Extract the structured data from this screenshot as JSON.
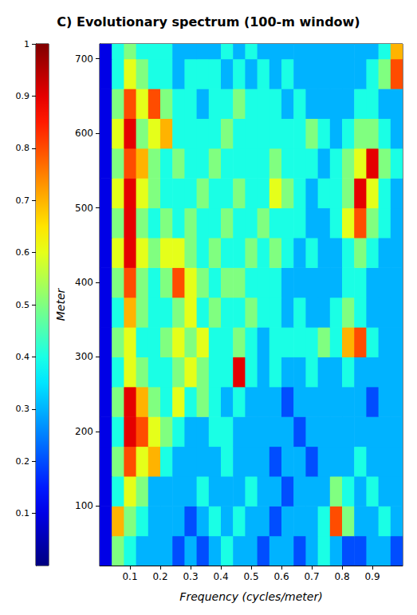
{
  "chart_data": {
    "type": "heatmap",
    "title": "C) Evolutionary spectrum (100-m window)",
    "x_label": "Frequency (cycles/meter)",
    "y_label": "Meter",
    "x": [
      0.02,
      0.06,
      0.1,
      0.14,
      0.18,
      0.22,
      0.26,
      0.3,
      0.34,
      0.38,
      0.42,
      0.46,
      0.5,
      0.54,
      0.58,
      0.62,
      0.66,
      0.7,
      0.74,
      0.78,
      0.82,
      0.86,
      0.9,
      0.94,
      0.98
    ],
    "y": [
      40,
      80,
      120,
      160,
      200,
      240,
      280,
      320,
      360,
      400,
      440,
      480,
      520,
      560,
      600,
      640,
      680,
      720
    ],
    "values": [
      [
        0.1,
        0.5,
        0.4,
        0.3,
        0.3,
        0.3,
        0.2,
        0.3,
        0.2,
        0.3,
        0.4,
        0.3,
        0.3,
        0.2,
        0.3,
        0.3,
        0.2,
        0.3,
        0.4,
        0.3,
        0.2,
        0.2,
        0.3,
        0.3,
        0.2
      ],
      [
        0.1,
        0.7,
        0.5,
        0.4,
        0.3,
        0.3,
        0.3,
        0.2,
        0.3,
        0.4,
        0.3,
        0.4,
        0.3,
        0.3,
        0.2,
        0.3,
        0.3,
        0.3,
        0.4,
        0.8,
        0.5,
        0.3,
        0.3,
        0.4,
        0.3
      ],
      [
        0.1,
        0.4,
        0.6,
        0.5,
        0.3,
        0.3,
        0.3,
        0.3,
        0.4,
        0.3,
        0.3,
        0.3,
        0.4,
        0.3,
        0.3,
        0.2,
        0.3,
        0.3,
        0.3,
        0.5,
        0.4,
        0.3,
        0.4,
        0.3,
        0.3
      ],
      [
        0.1,
        0.5,
        0.8,
        0.6,
        0.7,
        0.4,
        0.3,
        0.3,
        0.3,
        0.3,
        0.4,
        0.3,
        0.3,
        0.3,
        0.2,
        0.3,
        0.3,
        0.2,
        0.3,
        0.3,
        0.3,
        0.4,
        0.3,
        0.3,
        0.3
      ],
      [
        0.1,
        0.4,
        0.9,
        0.8,
        0.6,
        0.5,
        0.4,
        0.3,
        0.3,
        0.4,
        0.4,
        0.3,
        0.3,
        0.3,
        0.3,
        0.3,
        0.2,
        0.3,
        0.3,
        0.3,
        0.3,
        0.3,
        0.3,
        0.3,
        0.3
      ],
      [
        0.1,
        0.5,
        0.9,
        0.7,
        0.5,
        0.4,
        0.6,
        0.4,
        0.5,
        0.4,
        0.3,
        0.4,
        0.3,
        0.3,
        0.3,
        0.2,
        0.3,
        0.3,
        0.3,
        0.3,
        0.3,
        0.3,
        0.2,
        0.3,
        0.3
      ],
      [
        0.1,
        0.4,
        0.6,
        0.5,
        0.4,
        0.4,
        0.5,
        0.6,
        0.5,
        0.4,
        0.4,
        0.9,
        0.4,
        0.3,
        0.4,
        0.3,
        0.3,
        0.4,
        0.3,
        0.3,
        0.4,
        0.3,
        0.3,
        0.3,
        0.3
      ],
      [
        0.1,
        0.5,
        0.6,
        0.4,
        0.4,
        0.5,
        0.6,
        0.5,
        0.6,
        0.4,
        0.4,
        0.5,
        0.4,
        0.3,
        0.4,
        0.4,
        0.4,
        0.4,
        0.5,
        0.4,
        0.7,
        0.8,
        0.4,
        0.3,
        0.3
      ],
      [
        0.1,
        0.4,
        0.7,
        0.5,
        0.4,
        0.4,
        0.5,
        0.6,
        0.4,
        0.5,
        0.4,
        0.4,
        0.5,
        0.4,
        0.4,
        0.3,
        0.4,
        0.3,
        0.3,
        0.4,
        0.5,
        0.4,
        0.3,
        0.3,
        0.3
      ],
      [
        0.1,
        0.5,
        0.8,
        0.5,
        0.4,
        0.5,
        0.8,
        0.6,
        0.5,
        0.4,
        0.5,
        0.5,
        0.4,
        0.4,
        0.4,
        0.3,
        0.3,
        0.3,
        0.3,
        0.3,
        0.4,
        0.4,
        0.3,
        0.3,
        0.3
      ],
      [
        0.1,
        0.6,
        0.9,
        0.6,
        0.5,
        0.6,
        0.6,
        0.5,
        0.4,
        0.5,
        0.4,
        0.4,
        0.5,
        0.4,
        0.5,
        0.4,
        0.3,
        0.4,
        0.3,
        0.3,
        0.4,
        0.5,
        0.4,
        0.3,
        0.3
      ],
      [
        0.1,
        0.5,
        0.9,
        0.5,
        0.4,
        0.5,
        0.4,
        0.5,
        0.4,
        0.4,
        0.5,
        0.4,
        0.4,
        0.5,
        0.4,
        0.4,
        0.4,
        0.3,
        0.3,
        0.4,
        0.6,
        0.8,
        0.5,
        0.4,
        0.3
      ],
      [
        0.1,
        0.6,
        0.9,
        0.6,
        0.5,
        0.4,
        0.4,
        0.4,
        0.5,
        0.4,
        0.4,
        0.5,
        0.4,
        0.4,
        0.6,
        0.5,
        0.4,
        0.3,
        0.4,
        0.4,
        0.5,
        0.9,
        0.6,
        0.4,
        0.3
      ],
      [
        0.1,
        0.5,
        0.8,
        0.7,
        0.5,
        0.4,
        0.5,
        0.4,
        0.4,
        0.5,
        0.4,
        0.4,
        0.4,
        0.4,
        0.5,
        0.4,
        0.4,
        0.4,
        0.3,
        0.4,
        0.5,
        0.6,
        0.9,
        0.5,
        0.4
      ],
      [
        0.1,
        0.6,
        0.9,
        0.5,
        0.6,
        0.7,
        0.4,
        0.4,
        0.4,
        0.4,
        0.5,
        0.4,
        0.4,
        0.4,
        0.4,
        0.4,
        0.4,
        0.5,
        0.4,
        0.3,
        0.4,
        0.5,
        0.5,
        0.4,
        0.3
      ],
      [
        0.1,
        0.5,
        0.8,
        0.6,
        0.8,
        0.5,
        0.4,
        0.4,
        0.3,
        0.4,
        0.4,
        0.5,
        0.4,
        0.4,
        0.4,
        0.3,
        0.4,
        0.3,
        0.3,
        0.3,
        0.3,
        0.4,
        0.4,
        0.3,
        0.3
      ],
      [
        0.1,
        0.4,
        0.6,
        0.5,
        0.4,
        0.4,
        0.3,
        0.4,
        0.4,
        0.4,
        0.3,
        0.4,
        0.3,
        0.4,
        0.3,
        0.4,
        0.3,
        0.3,
        0.3,
        0.3,
        0.3,
        0.3,
        0.4,
        0.5,
        0.8
      ],
      [
        0.1,
        0.4,
        0.5,
        0.4,
        0.4,
        0.4,
        0.3,
        0.3,
        0.3,
        0.3,
        0.4,
        0.3,
        0.4,
        0.3,
        0.3,
        0.3,
        0.3,
        0.3,
        0.3,
        0.3,
        0.3,
        0.3,
        0.3,
        0.4,
        0.7
      ]
    ],
    "xlim": [
      0,
      1
    ],
    "xticks": [
      0.1,
      0.2,
      0.3,
      0.4,
      0.5,
      0.6,
      0.7,
      0.8,
      0.9
    ],
    "ylim": [
      20,
      720
    ],
    "yticks": [
      100,
      200,
      300,
      400,
      500,
      600,
      700
    ],
    "colorbar": {
      "range": [
        0,
        1
      ],
      "ticks": [
        0.1,
        0.2,
        0.3,
        0.4,
        0.5,
        0.6,
        0.7,
        0.8,
        0.9,
        1
      ]
    }
  }
}
